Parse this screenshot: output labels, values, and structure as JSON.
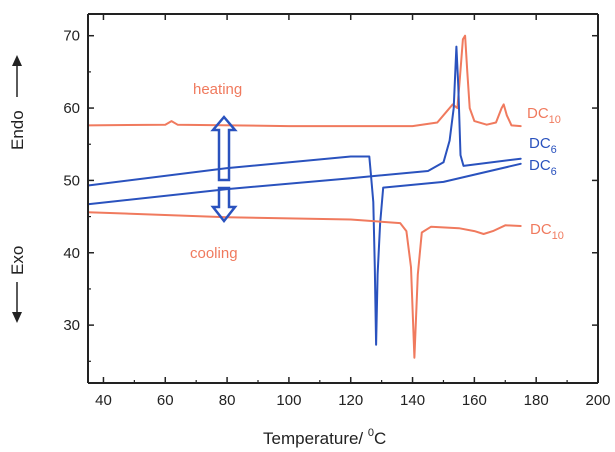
{
  "chart_data": {
    "type": "line",
    "xlabel": "Temperature/ ",
    "xlabel_unit": "C",
    "xlabel_degree": "0",
    "ylabel_top": "Endo",
    "ylabel_bottom": "Exo",
    "xlim": [
      35,
      200
    ],
    "ylim": [
      22,
      73
    ],
    "x_ticks": [
      40,
      60,
      80,
      100,
      120,
      140,
      160,
      180,
      200
    ],
    "y_ticks": [
      30,
      40,
      50,
      60,
      70
    ],
    "grid": false,
    "colors": {
      "DC10": "#f07a5e",
      "DC6": "#2a52be",
      "arrow": "#2a52be",
      "axis": "#222222"
    },
    "annotations": {
      "heating": "heating",
      "cooling": "cooling"
    },
    "series": [
      {
        "name": "DC10",
        "subscript": "10",
        "label_prefix": "DC",
        "process": "heating",
        "color": "#f07a5e",
        "points": [
          [
            35,
            57.6
          ],
          [
            60,
            57.7
          ],
          [
            62,
            58.2
          ],
          [
            64,
            57.7
          ],
          [
            100,
            57.5
          ],
          [
            140,
            57.5
          ],
          [
            148,
            58.0
          ],
          [
            151,
            59.5
          ],
          [
            153,
            60.5
          ],
          [
            154.5,
            60.0
          ],
          [
            155.3,
            64.0
          ],
          [
            156.3,
            69.5
          ],
          [
            157,
            70.0
          ],
          [
            157.7,
            65.0
          ],
          [
            158.5,
            60.0
          ],
          [
            160,
            58.2
          ],
          [
            164,
            57.7
          ],
          [
            167,
            58.0
          ],
          [
            168.8,
            60.0
          ],
          [
            169.5,
            60.5
          ],
          [
            170.5,
            59.0
          ],
          [
            172,
            57.6
          ],
          [
            175,
            57.5
          ]
        ]
      },
      {
        "name": "DC6",
        "subscript": "6",
        "label_prefix": "DC",
        "process": "heating",
        "color": "#2a52be",
        "points": [
          [
            35,
            46.7
          ],
          [
            80,
            48.8
          ],
          [
            120,
            50.3
          ],
          [
            145,
            51.3
          ],
          [
            150,
            52.5
          ],
          [
            152,
            55.5
          ],
          [
            153.3,
            60.0
          ],
          [
            154.2,
            68.5
          ],
          [
            154.8,
            63.0
          ],
          [
            155.5,
            53.5
          ],
          [
            156.5,
            52.0
          ],
          [
            175,
            53.0
          ]
        ]
      },
      {
        "name": "DC6",
        "subscript": "6",
        "label_prefix": "DC",
        "process": "cooling",
        "color": "#2a52be",
        "points": [
          [
            35,
            49.3
          ],
          [
            80,
            51.7
          ],
          [
            120,
            53.3
          ],
          [
            126,
            53.3
          ],
          [
            126.5,
            51.0
          ],
          [
            127.3,
            47.0
          ],
          [
            127.8,
            38.0
          ],
          [
            128.2,
            27.3
          ],
          [
            128.7,
            37.0
          ],
          [
            129.5,
            44.0
          ],
          [
            130.5,
            49.0
          ],
          [
            150,
            49.8
          ],
          [
            175,
            52.3
          ]
        ]
      },
      {
        "name": "DC10",
        "subscript": "10",
        "label_prefix": "DC",
        "process": "cooling",
        "color": "#f07a5e",
        "points": [
          [
            35,
            45.6
          ],
          [
            80,
            44.9
          ],
          [
            120,
            44.6
          ],
          [
            136,
            44.1
          ],
          [
            138,
            43.0
          ],
          [
            139.5,
            38.0
          ],
          [
            140.6,
            25.5
          ],
          [
            141.7,
            37.0
          ],
          [
            143,
            42.8
          ],
          [
            146,
            43.6
          ],
          [
            155,
            43.4
          ],
          [
            160,
            43.0
          ],
          [
            163,
            42.6
          ],
          [
            166,
            43.0
          ],
          [
            170,
            43.8
          ],
          [
            175,
            43.7
          ]
        ]
      }
    ]
  }
}
